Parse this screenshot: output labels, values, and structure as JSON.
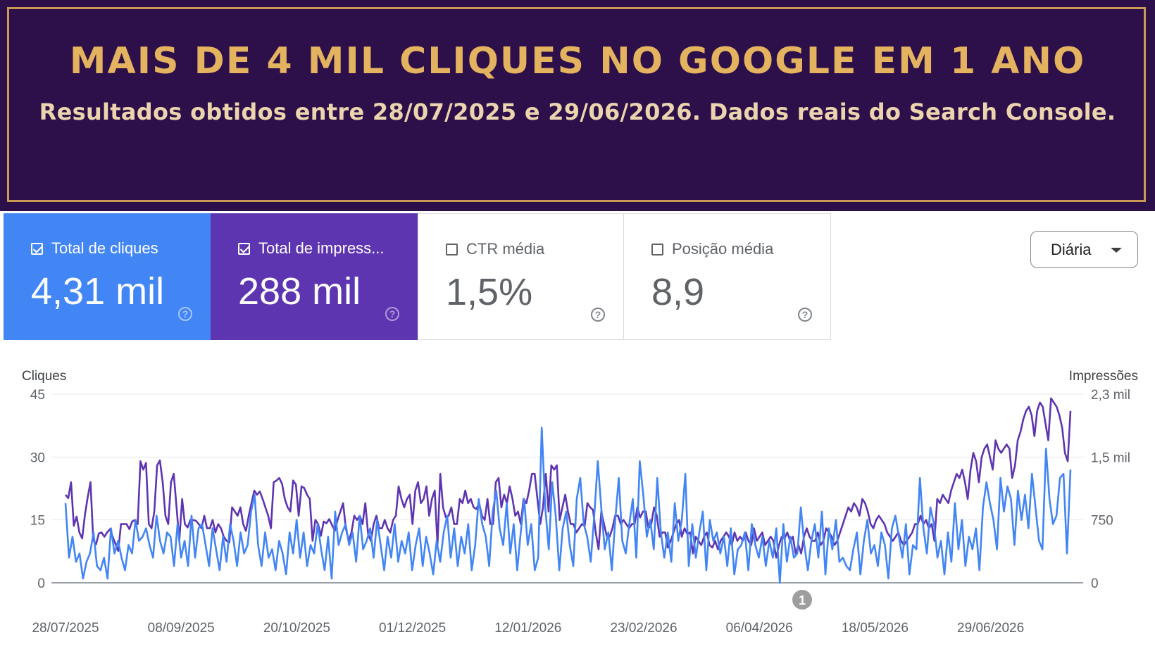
{
  "banner": {
    "title": "MAIS DE 4 MIL CLIQUES NO GOOGLE EM 1 ANO",
    "subtitle": "Resultados obtidos entre 28/07/2025 e 29/06/2026. Dados reais do Search Console."
  },
  "metrics": [
    {
      "label": "Total de cliques",
      "value": "4,31 mil",
      "checked": true,
      "color": "#4285f4"
    },
    {
      "label": "Total de impress...",
      "value": "288 mil",
      "checked": true,
      "color": "#5e35b1"
    },
    {
      "label": "CTR média",
      "value": "1,5%",
      "checked": false
    },
    {
      "label": "Posição média",
      "value": "8,9",
      "checked": false
    }
  ],
  "granularity": {
    "label": "Diária"
  },
  "icons": {
    "help": "help-circle-icon",
    "dropdown": "caret-down-icon",
    "checkbox": "checkbox-icon"
  },
  "annotation": {
    "label": "1"
  },
  "chart_data": {
    "type": "line",
    "title": "",
    "ylabel": "Cliques",
    "y2label": "Impressões",
    "ylim": [
      0,
      45
    ],
    "y2lim": [
      0,
      2250
    ],
    "yticks": [
      "0",
      "15",
      "30",
      "45"
    ],
    "y2ticks": [
      "0",
      "750",
      "1,5 mil",
      "2,3 mil"
    ],
    "xticks": [
      "28/07/2025",
      "08/09/2025",
      "20/10/2025",
      "01/12/2025",
      "12/01/2026",
      "23/02/2026",
      "06/04/2026",
      "18/05/2026",
      "29/06/2026"
    ],
    "grid": true,
    "series": [
      {
        "name": "Total de cliques",
        "axis": "left",
        "color": "#4285f4",
        "values": [
          19,
          6,
          11,
          5,
          7,
          1,
          5,
          7,
          12,
          4,
          3,
          6,
          1,
          13,
          7,
          10,
          6,
          3,
          9,
          7,
          15,
          10,
          11,
          13,
          9,
          6,
          16,
          10,
          7,
          12,
          11,
          4,
          14,
          6,
          10,
          4,
          16,
          6,
          13,
          14,
          9,
          4,
          13,
          8,
          3,
          11,
          5,
          14,
          10,
          4,
          12,
          7,
          9,
          17,
          21,
          9,
          4,
          12,
          6,
          8,
          3,
          10,
          7,
          2,
          12,
          7,
          15,
          6,
          12,
          4,
          9,
          7,
          14,
          8,
          3,
          11,
          1,
          17,
          9,
          12,
          14,
          9,
          12,
          5,
          16,
          8,
          10,
          13,
          6,
          15,
          9,
          3,
          11,
          6,
          14,
          5,
          10,
          7,
          12,
          3,
          9,
          13,
          4,
          11,
          7,
          2,
          10,
          5,
          12,
          16,
          6,
          13,
          4,
          11,
          7,
          14,
          3,
          9,
          20,
          14,
          11,
          4,
          17,
          22,
          13,
          9,
          19,
          7,
          14,
          3,
          12,
          20,
          9,
          14,
          3,
          6,
          37,
          18,
          8,
          24,
          16,
          3,
          13,
          17,
          9,
          4,
          20,
          25,
          14,
          11,
          5,
          16,
          29,
          18,
          8,
          12,
          3,
          15,
          25,
          10,
          7,
          14,
          20,
          6,
          29,
          21,
          11,
          15,
          8,
          25,
          12,
          6,
          12,
          5,
          19,
          10,
          15,
          26,
          4,
          14,
          6,
          12,
          17,
          3,
          15,
          10,
          12,
          7,
          11,
          4,
          13,
          2,
          8,
          9,
          12,
          3,
          14,
          9,
          6,
          11,
          4,
          10,
          6,
          13,
          0,
          14,
          5,
          11,
          6,
          7,
          18,
          9,
          3,
          10,
          14,
          6,
          17,
          2,
          13,
          8,
          15,
          5,
          6,
          4,
          3,
          8,
          12,
          2,
          10,
          15,
          7,
          9,
          4,
          12,
          9,
          1,
          13,
          16,
          11,
          6,
          14,
          2,
          9,
          8,
          25,
          13,
          7,
          18,
          14,
          6,
          10,
          2,
          12,
          5,
          19,
          8,
          15,
          4,
          11,
          8,
          13,
          3,
          18,
          24,
          19,
          15,
          8,
          25,
          17,
          23,
          20,
          9,
          22,
          15,
          21,
          13,
          26,
          18,
          10,
          8,
          32,
          20,
          14,
          16,
          25,
          26,
          7,
          27
        ],
        "raw_impressions_ref": "left-axis scale only"
      },
      {
        "name": "Total de impressões",
        "axis": "right",
        "color": "#5e35b1",
        "values": [
          1050,
          1010,
          1200,
          680,
          790,
          600,
          530,
          810,
          1020,
          1200,
          510,
          460,
          590,
          600,
          550,
          600,
          640,
          550,
          460,
          380,
          700,
          700,
          700,
          640,
          730,
          750,
          700,
          1450,
          1350,
          1430,
          700,
          650,
          850,
          1400,
          1460,
          1200,
          800,
          700,
          1200,
          1300,
          900,
          500,
          1000,
          700,
          660,
          750,
          750,
          740,
          700,
          650,
          800,
          650,
          650,
          750,
          600,
          700,
          650,
          550,
          500,
          480,
          900,
          850,
          800,
          900,
          700,
          620,
          800,
          950,
          1100,
          1050,
          1090,
          1000,
          900,
          800,
          650,
          1200,
          1220,
          1250,
          1180,
          1000,
          900,
          850,
          1220,
          1170,
          800,
          1150,
          1130,
          1050,
          1000,
          500,
          750,
          700,
          560,
          730,
          710,
          760,
          690,
          620,
          750,
          850,
          950,
          650,
          500,
          600,
          800,
          750,
          800,
          700,
          950,
          580,
          500,
          700,
          800,
          650,
          650,
          750,
          650,
          600,
          750,
          800,
          1150,
          1000,
          900,
          1000,
          1050,
          700,
          1100,
          1200,
          950,
          1000,
          1150,
          800,
          1000,
          1100,
          450,
          1300,
          900,
          780,
          800,
          900,
          700,
          700,
          1000,
          950,
          1100,
          950,
          1000,
          900,
          880,
          950,
          800,
          750,
          1000,
          700,
          700,
          1200,
          1250,
          900,
          1050,
          950,
          1150,
          1000,
          800,
          850,
          700,
          1000,
          950,
          1100,
          1300,
          1300,
          1000,
          700,
          900,
          1300,
          850,
          1400,
          1350,
          1400,
          750,
          900,
          1050,
          850,
          700,
          700,
          600,
          650,
          700,
          680,
          950,
          900,
          870,
          600,
          400,
          850,
          700,
          550,
          550,
          650,
          800,
          800,
          700,
          750,
          700,
          650,
          700,
          700,
          900,
          780,
          850,
          850,
          650,
          700,
          900,
          800,
          550,
          600,
          600,
          420,
          500,
          600,
          700,
          750,
          550,
          650,
          580,
          600,
          350,
          550,
          500,
          450,
          550,
          600,
          450,
          420,
          500,
          400,
          500,
          550,
          600,
          550,
          450,
          600,
          500,
          550,
          500,
          600,
          500,
          450,
          650,
          500,
          550,
          600,
          450,
          500,
          550,
          500,
          300,
          450,
          550,
          530,
          600,
          500,
          550,
          350,
          450,
          350,
          550,
          650,
          550,
          500,
          500,
          600,
          450,
          500,
          650,
          600,
          550,
          450,
          500,
          600,
          700,
          800,
          900,
          850,
          950,
          900,
          800,
          1000,
          950,
          850,
          700,
          650,
          750,
          800,
          750,
          700,
          600,
          550,
          500,
          550,
          600,
          500,
          450,
          500,
          550,
          600,
          700,
          700,
          800,
          700,
          750,
          650,
          700,
          500,
          1000,
          950,
          1050,
          1000,
          950,
          1100,
          1200,
          1300,
          1250,
          1350,
          1200,
          1000,
          1350,
          1550,
          1450,
          1200,
          1500,
          1600,
          1650,
          1500,
          1350,
          1700,
          1600,
          1550,
          1600,
          1650,
          1600,
          1250,
          1400,
          1700,
          1800,
          1950,
          2050,
          2100,
          2000,
          1750,
          2050,
          2150,
          2100,
          1900,
          1700,
          2200,
          2150,
          2100,
          2000,
          1850,
          1550,
          1450,
          2050
        ]
      }
    ]
  }
}
